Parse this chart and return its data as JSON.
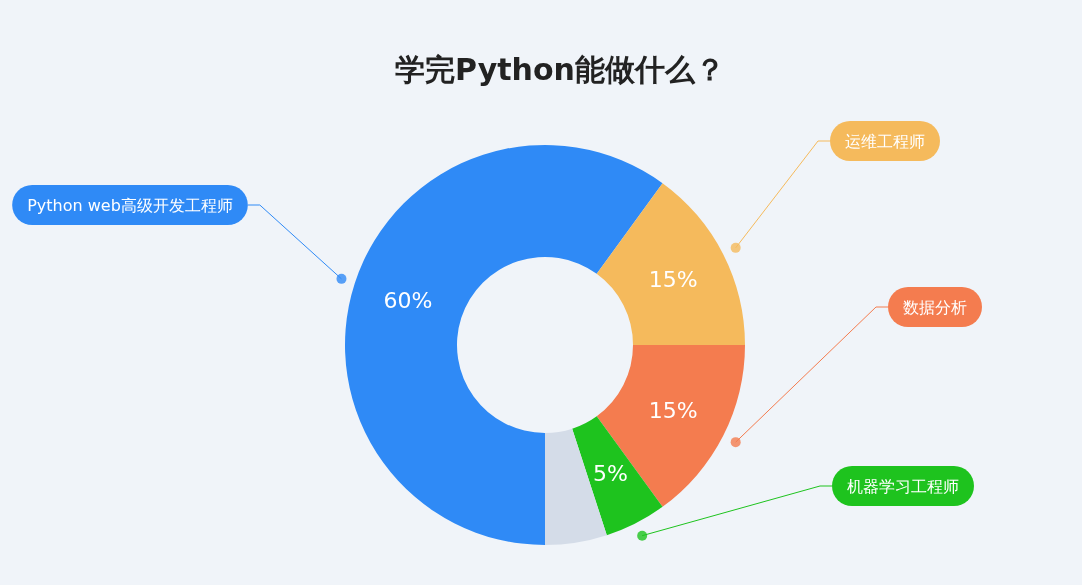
{
  "chart_data": {
    "type": "donut",
    "title": "学完Python能做什么？",
    "categories": [
      "Python web高级开发工程师",
      "运维工程师",
      "数据分析",
      "机器学习工程师",
      null
    ],
    "values": [
      60,
      15,
      15,
      5,
      5
    ],
    "colors": [
      "#2f8af6",
      "#f5ba5c",
      "#f47c4f",
      "#1ec31e",
      "#d4dce8"
    ],
    "value_labels": [
      "60%",
      "15%",
      "15%",
      "5%",
      null
    ]
  }
}
